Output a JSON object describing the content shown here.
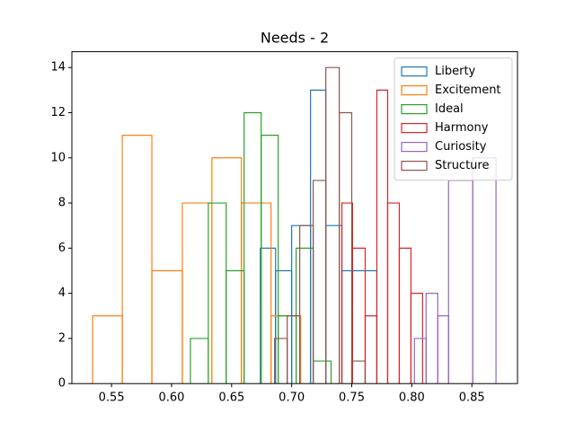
{
  "chart_data": {
    "type": "histogram",
    "title": "Needs - 2",
    "xlim": [
      0.517,
      0.888
    ],
    "ylim": [
      0,
      14.7
    ],
    "xticks": [
      0.55,
      {
        "value": 0.6,
        "label": "0.60"
      },
      0.65,
      {
        "value": 0.7,
        "label": "0.70"
      },
      0.75,
      {
        "value": 0.8,
        "label": "0.80"
      },
      0.85
    ],
    "yticks": [
      0,
      2,
      4,
      6,
      8,
      10,
      12,
      14
    ],
    "legend": "upper-right",
    "series": [
      {
        "name": "Liberty",
        "color": "#1f77b4",
        "bins": [
          0.6739,
          0.6866,
          0.7,
          0.7157,
          0.7284,
          0.7418,
          0.7709
        ],
        "values": [
          6,
          5,
          7,
          13,
          7,
          5
        ]
      },
      {
        "name": "Excitement",
        "color": "#ff7f0e",
        "bins": [
          0.5343,
          0.559,
          0.5836,
          0.609,
          0.6336,
          0.6582,
          0.6828,
          0.7075
        ],
        "values": [
          3,
          11,
          5,
          8,
          10,
          8,
          3
        ]
      },
      {
        "name": "Ideal",
        "color": "#2ca02c",
        "bins": [
          0.6157,
          0.6306,
          0.6455,
          0.6604,
          0.6746,
          0.6888,
          0.7037,
          0.7179,
          0.7328
        ],
        "values": [
          2,
          8,
          5,
          12,
          11,
          3,
          6,
          1
        ]
      },
      {
        "name": "Harmony",
        "color": "#d62728",
        "bins": [
          0.7418,
          0.7507,
          0.7612,
          0.7709,
          0.7799,
          0.7896,
          0.7993,
          0.809
        ],
        "values": [
          8,
          6,
          3,
          13,
          8,
          6,
          4
        ]
      },
      {
        "name": "Curiosity",
        "color": "#9467bd",
        "bins": [
          0.8022,
          0.8119,
          0.8216,
          0.8306,
          0.8507,
          0.8701
        ],
        "values": [
          2,
          4,
          3,
          9,
          10
        ]
      },
      {
        "name": "Structure",
        "color": "#8c564b",
        "bins": [
          0.6858,
          0.6963,
          0.7067,
          0.7179,
          0.7284,
          0.7396,
          0.75,
          0.7612
        ],
        "values": [
          2,
          3,
          7,
          9,
          14,
          12,
          1
        ]
      }
    ]
  }
}
